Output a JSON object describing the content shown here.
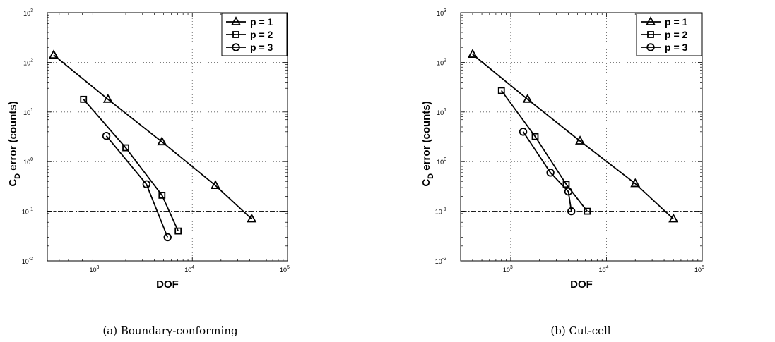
{
  "chart_data": [
    {
      "type": "line",
      "caption": "(a) Boundary-conforming",
      "xlabel": "DOF",
      "ylabel": "error (counts)",
      "ylabel_main": "C",
      "ylabel_sub": "D",
      "xscale": "log",
      "yscale": "log",
      "xlim": [
        300,
        100000
      ],
      "ylim": [
        0.01,
        1000
      ],
      "x_ticks": [
        {
          "base": "10",
          "exp": "3"
        },
        {
          "base": "10",
          "exp": "4"
        },
        {
          "base": "10",
          "exp": "5"
        }
      ],
      "y_ticks": [
        {
          "base": "10",
          "exp": "-2"
        },
        {
          "base": "10",
          "exp": "-1"
        },
        {
          "base": "10",
          "exp": "0"
        },
        {
          "base": "10",
          "exp": "1"
        },
        {
          "base": "10",
          "exp": "2"
        },
        {
          "base": "10",
          "exp": "3"
        }
      ],
      "grid": true,
      "legend_position": "top-right",
      "reference_line": 0.1,
      "series": [
        {
          "name": "p = 1",
          "marker": "triangle",
          "x": [
            350,
            1300,
            4800,
            17500,
            42000
          ],
          "y": [
            140,
            18,
            2.5,
            0.33,
            0.07
          ]
        },
        {
          "name": "p = 2",
          "marker": "square",
          "x": [
            720,
            2000,
            4800,
            7100
          ],
          "y": [
            18,
            1.9,
            0.21,
            0.04
          ]
        },
        {
          "name": "p = 3",
          "marker": "circle",
          "x": [
            1250,
            3300,
            5500
          ],
          "y": [
            3.3,
            0.35,
            0.03
          ]
        }
      ]
    },
    {
      "type": "line",
      "caption": "(b) Cut-cell",
      "xlabel": "DOF",
      "ylabel": "error (counts)",
      "ylabel_main": "C",
      "ylabel_sub": "D",
      "xscale": "log",
      "yscale": "log",
      "xlim": [
        300,
        100000
      ],
      "ylim": [
        0.01,
        1000
      ],
      "x_ticks": [
        {
          "base": "10",
          "exp": "3"
        },
        {
          "base": "10",
          "exp": "4"
        },
        {
          "base": "10",
          "exp": "5"
        }
      ],
      "y_ticks": [
        {
          "base": "10",
          "exp": "-2"
        },
        {
          "base": "10",
          "exp": "-1"
        },
        {
          "base": "10",
          "exp": "0"
        },
        {
          "base": "10",
          "exp": "1"
        },
        {
          "base": "10",
          "exp": "2"
        },
        {
          "base": "10",
          "exp": "3"
        }
      ],
      "grid": true,
      "legend_position": "top-right",
      "reference_line": 0.1,
      "series": [
        {
          "name": "p = 1",
          "marker": "triangle",
          "x": [
            400,
            1500,
            5300,
            20000,
            50000
          ],
          "y": [
            145,
            18,
            2.6,
            0.36,
            0.07
          ]
        },
        {
          "name": "p = 2",
          "marker": "square",
          "x": [
            800,
            1800,
            3800,
            6300
          ],
          "y": [
            27,
            3.2,
            0.35,
            0.1
          ]
        },
        {
          "name": "p = 3",
          "marker": "circle",
          "x": [
            1350,
            2600,
            4000,
            4300
          ],
          "y": [
            4,
            0.6,
            0.25,
            0.1
          ]
        }
      ]
    }
  ]
}
